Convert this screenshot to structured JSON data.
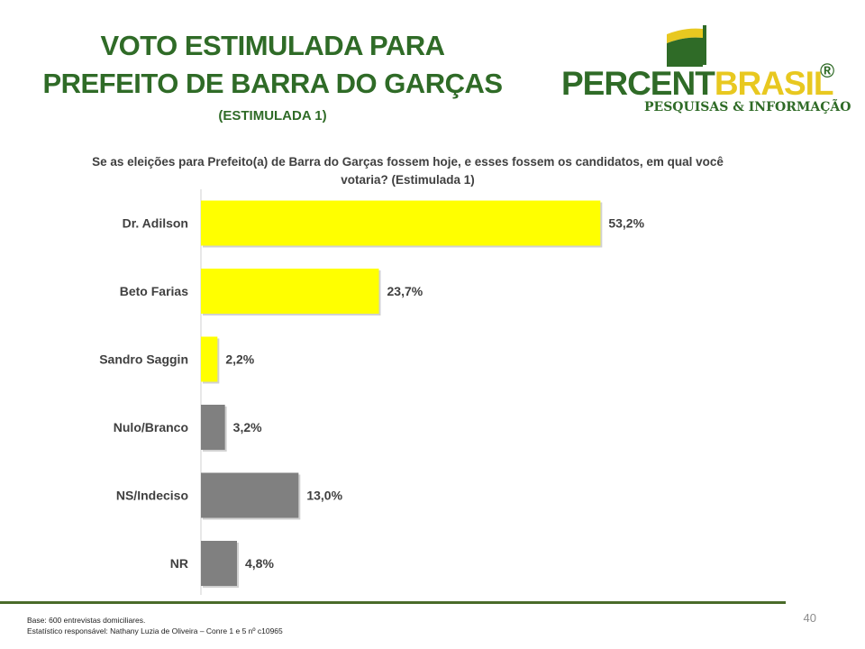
{
  "title": {
    "line1": "VOTO ESTIMULADA PARA",
    "line2": "PREFEITO DE BARRA DO GARÇAS",
    "subtitle": "(ESTIMULADA 1)"
  },
  "logo": {
    "word_part1": "PERCENT",
    "word_part2": "BRASIL",
    "registered": "®",
    "tagline": "PESQUISAS & INFORMAÇÃO",
    "colors": {
      "green": "#2f6b27",
      "yellow": "#e8c820"
    }
  },
  "question": "Se as eleições para Prefeito(a) de Barra do Garças fossem hoje, e esses fossem os candidatos, em qual você votaria? (Estimulada 1)",
  "chart_data": {
    "type": "bar",
    "orientation": "horizontal",
    "categories": [
      "Dr. Adilson",
      "Beto Farias",
      "Sandro Saggin",
      "Nulo/Branco",
      "NS/Indeciso",
      "NR"
    ],
    "values": [
      53.2,
      23.7,
      2.2,
      3.2,
      13.0,
      4.8
    ],
    "value_labels": [
      "53,2%",
      "23,7%",
      "2,2%",
      "3,2%",
      "13,0%",
      "4,8%"
    ],
    "bar_colors": [
      "#ffff00",
      "#ffff00",
      "#ffff00",
      "#808080",
      "#808080",
      "#808080"
    ],
    "xlim": [
      0,
      60
    ],
    "grid": false,
    "legend": "none"
  },
  "footer": {
    "base": "Base: 600 entrevistas domiciliares.",
    "statistician": "Estatístico responsável: Nathany Luzia de Oliveira – Conre 1 e 5 nº c10965",
    "page_number": "40"
  }
}
